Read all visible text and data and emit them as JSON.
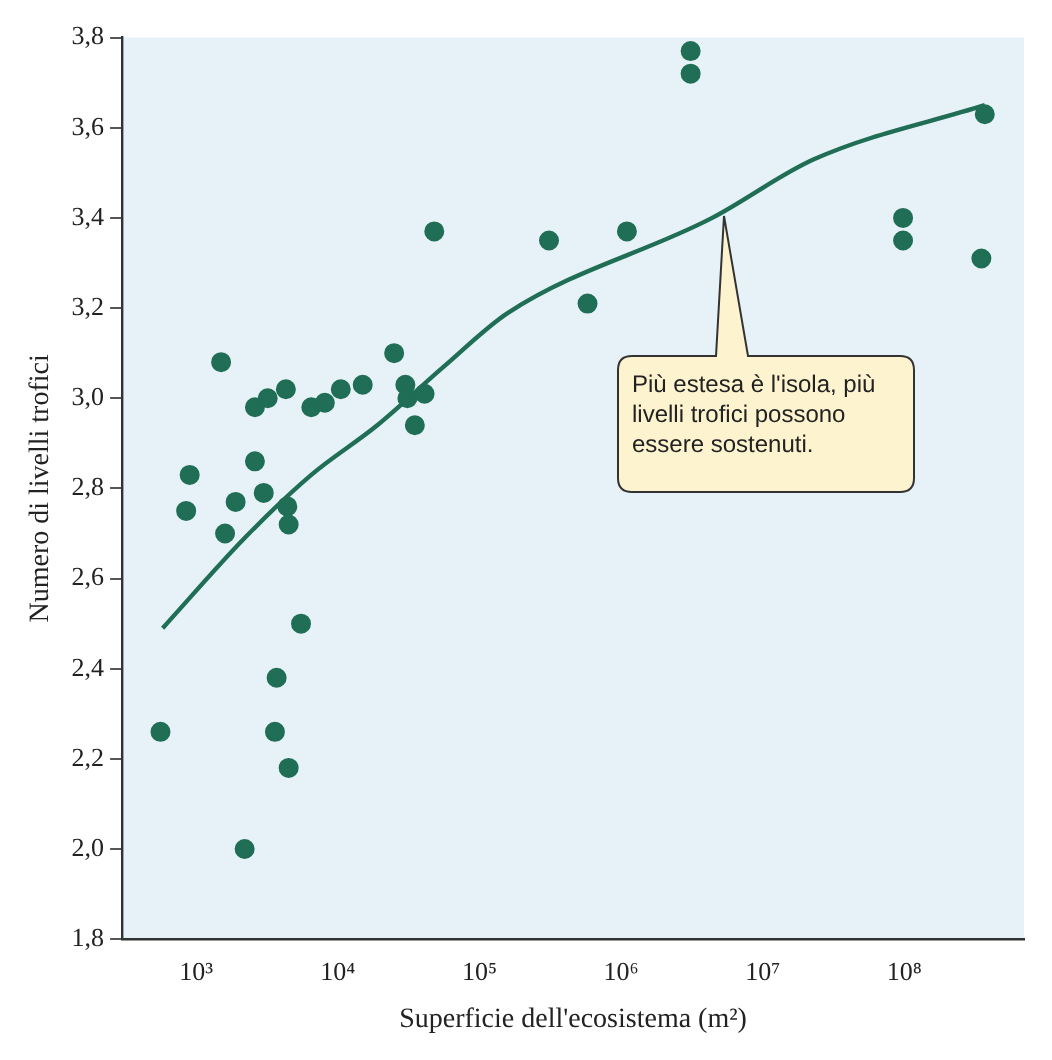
{
  "chart_data": {
    "type": "scatter",
    "xlabel": "Superficie dell'ecosistema (m²)",
    "ylabel": "Numero di livelli trofici",
    "log": "x",
    "grid": false,
    "legend": false,
    "marker": "circle",
    "xlim": [
      300,
      700000000
    ],
    "ylim": [
      1.8,
      3.8
    ],
    "xticks": [
      {
        "value": 1000,
        "label": "10³"
      },
      {
        "value": 10000,
        "label": "10⁴"
      },
      {
        "value": 100000,
        "label": "10⁵"
      },
      {
        "value": 1000000,
        "label": "10⁶"
      },
      {
        "value": 10000000,
        "label": "10⁷"
      },
      {
        "value": 100000000,
        "label": "10⁸"
      }
    ],
    "yticks": [
      {
        "value": 1.8,
        "label": "1,8"
      },
      {
        "value": 2.0,
        "label": "2,0"
      },
      {
        "value": 2.2,
        "label": "2,2"
      },
      {
        "value": 2.4,
        "label": "2,4"
      },
      {
        "value": 2.6,
        "label": "2,6"
      },
      {
        "value": 2.8,
        "label": "2,8"
      },
      {
        "value": 3.0,
        "label": "3,0"
      },
      {
        "value": 3.2,
        "label": "3,2"
      },
      {
        "value": 3.4,
        "label": "3,4"
      },
      {
        "value": 3.6,
        "label": "3,6"
      },
      {
        "value": 3.8,
        "label": "3,8"
      }
    ],
    "series": [
      {
        "color": "#1f6e55",
        "x": [
          560,
          850,
          900,
          1500,
          1600,
          1900,
          2200,
          2600,
          2600,
          3000,
          3200,
          3600,
          3700,
          4300,
          4400,
          4500,
          4500,
          5500,
          6500,
          8100,
          10500,
          15000,
          25000,
          30000,
          31000,
          35000,
          41000,
          48000,
          310000,
          580000,
          1100000,
          3100000,
          3100000,
          98000000,
          98000000,
          350000000,
          370000000
        ],
        "values": [
          2.26,
          2.75,
          2.83,
          3.08,
          2.7,
          2.77,
          2.0,
          2.86,
          2.98,
          2.79,
          3.0,
          2.26,
          2.38,
          3.02,
          2.76,
          2.72,
          2.18,
          2.5,
          2.98,
          2.99,
          3.02,
          3.03,
          3.1,
          3.03,
          3.0,
          2.94,
          3.01,
          3.37,
          3.35,
          3.21,
          3.37,
          3.77,
          3.72,
          3.4,
          3.35,
          3.31,
          3.63
        ]
      },
      {
        "type": "line",
        "color": "#1f6e55",
        "marker": "none",
        "x": [
          580,
          2200,
          6500,
          19000,
          56000,
          160000,
          4400000,
          23000000,
          370000000
        ],
        "values": [
          2.49,
          2.69,
          2.83,
          2.94,
          3.07,
          3.19,
          3.4,
          3.53,
          3.65
        ]
      }
    ],
    "annotations": [
      "Più estesa è l'isola, più livelli trofici possono essere sostenuti."
    ]
  }
}
